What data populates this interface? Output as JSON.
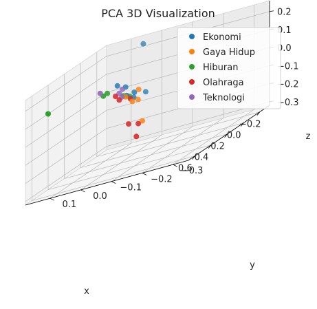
{
  "chart_data": {
    "type": "scatter",
    "title": "PCA 3D Visualization",
    "xlabel": "x",
    "ylabel": "y",
    "zlabel": "z",
    "x_ticks": [
      "−0.2",
      "0.0",
      "0.2",
      "0.4",
      "0.6"
    ],
    "x_tick_values": [
      -0.2,
      0.0,
      0.2,
      0.4,
      0.6
    ],
    "y_ticks": [
      "0.1",
      "0.0",
      "−0.1",
      "−0.2",
      "−0.3"
    ],
    "y_tick_values": [
      0.1,
      0.0,
      -0.1,
      -0.2,
      -0.3
    ],
    "z_ticks": [
      "0.2",
      "0.1",
      "0.0",
      "−0.1",
      "−0.2",
      "−0.3"
    ],
    "z_tick_values": [
      0.2,
      0.1,
      0.0,
      -0.1,
      -0.2,
      -0.3
    ],
    "xlim": [
      -0.32,
      0.68
    ],
    "ylim": [
      -0.35,
      0.18
    ],
    "zlim": [
      -0.32,
      0.26
    ],
    "legend_position": "top-right",
    "grid": true,
    "series": [
      {
        "name": "Ekonomi",
        "color": "#1f77b4",
        "points": [
          [
            -0.28,
            0.05,
            0.22
          ],
          [
            -0.15,
            0.1,
            0.05
          ],
          [
            -0.1,
            0.06,
            0.04
          ],
          [
            -0.12,
            0.0,
            -0.02
          ],
          [
            -0.05,
            0.02,
            -0.02
          ],
          [
            0.0,
            0.03,
            0.01
          ],
          [
            0.02,
            0.0,
            0.02
          ]
        ]
      },
      {
        "name": "Gaya Hidup",
        "color": "#ff7f0e",
        "points": [
          [
            0.05,
            -0.02,
            -0.02
          ],
          [
            0.09,
            0.01,
            0.02
          ],
          [
            0.12,
            -0.02,
            -0.01
          ],
          [
            0.3,
            -0.1,
            -0.1
          ],
          [
            0.08,
            -0.03,
            0.04
          ]
        ]
      },
      {
        "name": "Hiburan",
        "color": "#2ca02c",
        "points": [
          [
            0.4,
            0.18,
            0.1
          ],
          [
            0.05,
            0.08,
            0.06
          ],
          [
            0.1,
            0.08,
            0.06
          ],
          [
            0.04,
            0.03,
            0.02
          ],
          [
            0.0,
            0.02,
            0.0
          ]
        ]
      },
      {
        "name": "Olahraga",
        "color": "#d62728",
        "points": [
          [
            0.28,
            -0.05,
            -0.1
          ],
          [
            0.35,
            -0.1,
            -0.1
          ],
          [
            0.45,
            -0.12,
            -0.15
          ],
          [
            0.1,
            0.04,
            0.04
          ],
          [
            0.13,
            0.02,
            0.02
          ],
          [
            0.07,
            0.0,
            0.0
          ]
        ]
      },
      {
        "name": "Teknologi",
        "color": "#9467bd",
        "points": [
          [
            -0.06,
            0.06,
            0.04
          ],
          [
            -0.02,
            0.06,
            0.03
          ],
          [
            0.1,
            0.09,
            0.08
          ],
          [
            0.06,
            0.03,
            0.02
          ]
        ]
      }
    ]
  }
}
